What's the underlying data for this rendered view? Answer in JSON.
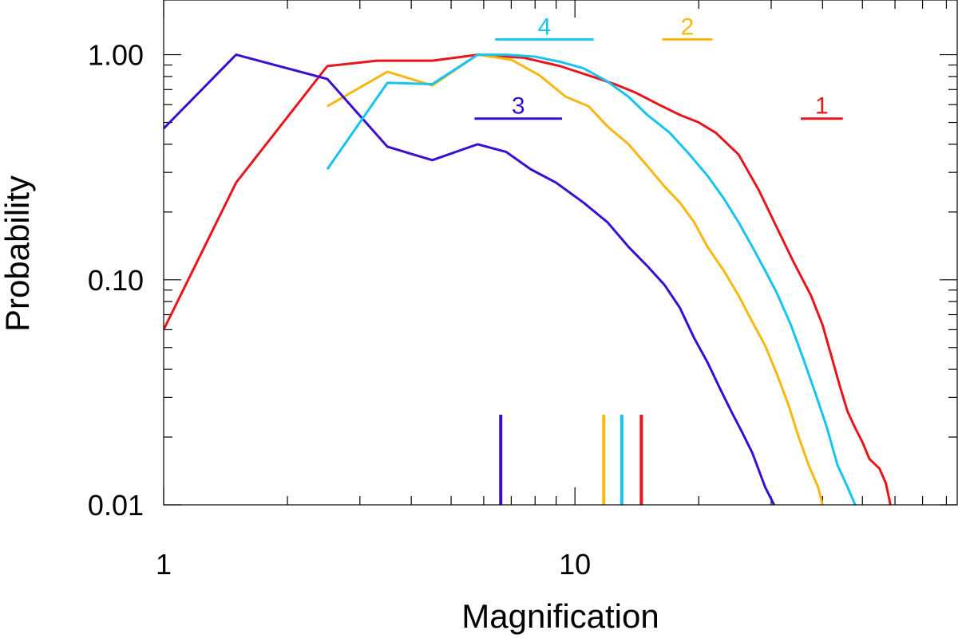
{
  "chart_data": {
    "type": "line",
    "title": "",
    "xlabel": "Magnification",
    "ylabel": "Probability",
    "xscale": "log",
    "yscale": "log",
    "xlim": [
      1,
      85
    ],
    "ylim": [
      0.01,
      1.75
    ],
    "grid": false,
    "legend": "none",
    "x_tick_labels": [
      {
        "value": 1,
        "label": "1"
      },
      {
        "value": 10,
        "label": "10"
      }
    ],
    "y_tick_labels": [
      {
        "value": 0.01,
        "label": "0.01"
      },
      {
        "value": 0.1,
        "label": "0.10"
      },
      {
        "value": 1,
        "label": "1.00"
      }
    ],
    "series": [
      {
        "label": "1",
        "color": "#e8161b",
        "marker_x": 14.5,
        "tag_line": [
          35.4,
          44.8
        ],
        "tag_line_y": 0.52,
        "points": [
          [
            1.0,
            0.06
          ],
          [
            1.5,
            0.27
          ],
          [
            2.5,
            0.89
          ],
          [
            3.3,
            0.94
          ],
          [
            4.5,
            0.94
          ],
          [
            5.8,
            1.0
          ],
          [
            7.5,
            0.97
          ],
          [
            9.2,
            0.89
          ],
          [
            11.0,
            0.8
          ],
          [
            12.5,
            0.74
          ],
          [
            14.0,
            0.68
          ],
          [
            16.0,
            0.6
          ],
          [
            18.0,
            0.54
          ],
          [
            20.0,
            0.5
          ],
          [
            22.0,
            0.45
          ],
          [
            25.0,
            0.36
          ],
          [
            28.0,
            0.25
          ],
          [
            31.0,
            0.17
          ],
          [
            34.0,
            0.12
          ],
          [
            37.5,
            0.085
          ],
          [
            40.0,
            0.063
          ],
          [
            42.0,
            0.046
          ],
          [
            44.0,
            0.034
          ],
          [
            46.0,
            0.026
          ],
          [
            48.0,
            0.022
          ],
          [
            50.0,
            0.019
          ],
          [
            52.0,
            0.016
          ],
          [
            55.0,
            0.0145
          ],
          [
            57.0,
            0.0125
          ],
          [
            58.5,
            0.01
          ]
        ]
      },
      {
        "label": "2",
        "color": "#f8b712",
        "marker_x": 11.75,
        "tag_line": [
          16.3,
          21.6
        ],
        "tag_line_y": 1.17,
        "points": [
          [
            2.5,
            0.59
          ],
          [
            3.5,
            0.84
          ],
          [
            4.5,
            0.73
          ],
          [
            5.8,
            1.0
          ],
          [
            7.0,
            0.95
          ],
          [
            8.2,
            0.81
          ],
          [
            9.5,
            0.65
          ],
          [
            10.8,
            0.59
          ],
          [
            12.0,
            0.48
          ],
          [
            13.5,
            0.4
          ],
          [
            15.0,
            0.32
          ],
          [
            16.5,
            0.26
          ],
          [
            18.0,
            0.22
          ],
          [
            19.5,
            0.18
          ],
          [
            21.0,
            0.14
          ],
          [
            23.0,
            0.11
          ],
          [
            25.0,
            0.085
          ],
          [
            27.0,
            0.065
          ],
          [
            29.0,
            0.051
          ],
          [
            31.0,
            0.038
          ],
          [
            33.0,
            0.028
          ],
          [
            35.0,
            0.02
          ],
          [
            37.0,
            0.015
          ],
          [
            39.0,
            0.012
          ],
          [
            40.0,
            0.01
          ]
        ]
      },
      {
        "label": "3",
        "color": "#3a0dd2",
        "marker_x": 6.6,
        "tag_line": [
          5.7,
          9.3
        ],
        "tag_line_y": 0.52,
        "points": [
          [
            1.0,
            0.47
          ],
          [
            1.5,
            1.0
          ],
          [
            2.5,
            0.78
          ],
          [
            3.5,
            0.39
          ],
          [
            4.5,
            0.34
          ],
          [
            5.8,
            0.4
          ],
          [
            6.8,
            0.37
          ],
          [
            7.8,
            0.31
          ],
          [
            9.0,
            0.27
          ],
          [
            10.5,
            0.22
          ],
          [
            12.0,
            0.18
          ],
          [
            13.5,
            0.14
          ],
          [
            15.0,
            0.115
          ],
          [
            16.5,
            0.095
          ],
          [
            18.0,
            0.075
          ],
          [
            19.5,
            0.055
          ],
          [
            21.0,
            0.043
          ],
          [
            22.5,
            0.033
          ],
          [
            24.0,
            0.026
          ],
          [
            25.5,
            0.021
          ],
          [
            27.0,
            0.017
          ],
          [
            29.0,
            0.012
          ],
          [
            30.5,
            0.01
          ]
        ]
      },
      {
        "label": "4",
        "color": "#17c3f0",
        "marker_x": 13.0,
        "tag_line": [
          6.4,
          11.1
        ],
        "tag_line_y": 1.17,
        "points": [
          [
            2.5,
            0.31
          ],
          [
            3.5,
            0.75
          ],
          [
            4.5,
            0.74
          ],
          [
            5.8,
            1.0
          ],
          [
            6.8,
            1.0
          ],
          [
            8.0,
            0.98
          ],
          [
            9.2,
            0.93
          ],
          [
            10.5,
            0.87
          ],
          [
            12.0,
            0.76
          ],
          [
            13.5,
            0.65
          ],
          [
            15.0,
            0.54
          ],
          [
            17.0,
            0.45
          ],
          [
            19.0,
            0.36
          ],
          [
            21.0,
            0.29
          ],
          [
            23.0,
            0.23
          ],
          [
            25.0,
            0.18
          ],
          [
            27.0,
            0.14
          ],
          [
            29.0,
            0.11
          ],
          [
            31.0,
            0.087
          ],
          [
            33.5,
            0.063
          ],
          [
            36.0,
            0.044
          ],
          [
            38.5,
            0.031
          ],
          [
            41.0,
            0.022
          ],
          [
            43.5,
            0.015
          ],
          [
            46.0,
            0.012
          ],
          [
            48.0,
            0.01
          ]
        ]
      }
    ]
  }
}
